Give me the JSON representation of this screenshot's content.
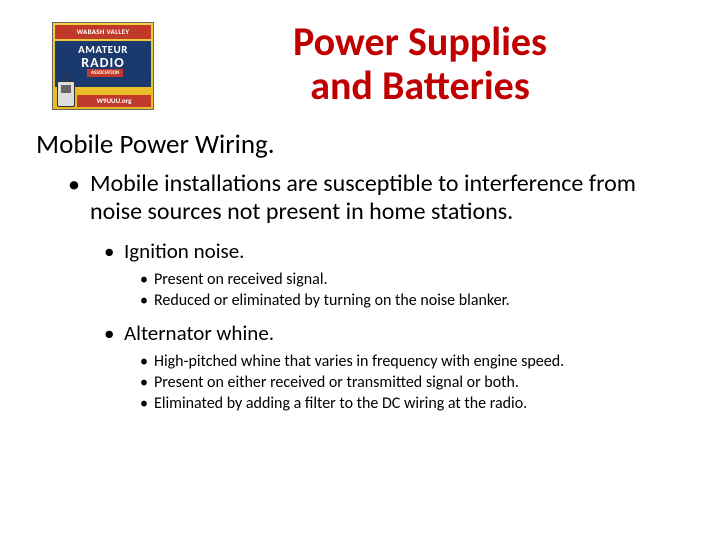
{
  "logo": {
    "top_text": "WABASH VALLEY",
    "mid_line1": "AMATEUR",
    "mid_line2": "RADIO",
    "assoc_text": "ASSOCIATION",
    "bottom_text": "W9UUU.org",
    "bg_gradient_top": "#f4d03f",
    "bg_gradient_bottom": "#e8b923",
    "banner_color": "#c0392b",
    "mid_color": "#1a3a6e"
  },
  "title": {
    "line1": "Power Supplies",
    "line2": "and Batteries",
    "color": "#c00000",
    "fontsize": 40
  },
  "section_heading": "Mobile Power Wiring.",
  "bullets": {
    "l1": "Mobile installations are susceptible to interference from noise sources not present in home stations.",
    "l2a": "Ignition noise.",
    "l3a": [
      "Present on received signal.",
      "Reduced or eliminated by turning on the noise blanker."
    ],
    "l2b": "Alternator whine.",
    "l3b": [
      "High-pitched whine that varies in frequency with engine speed.",
      "Present on either received or transmitted signal or both.",
      "Eliminated by adding a filter to the DC wiring at the radio."
    ]
  },
  "colors": {
    "text": "#000000",
    "background": "#ffffff"
  }
}
